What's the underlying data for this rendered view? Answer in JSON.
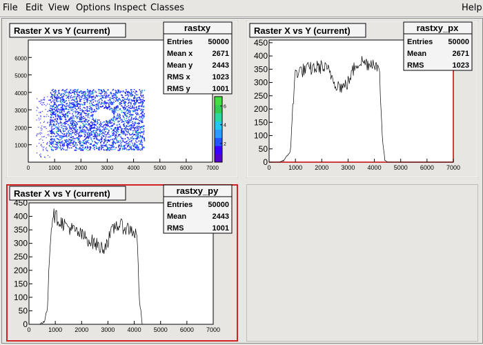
{
  "menu": {
    "file": "File",
    "edit": "Edit",
    "view": "View",
    "options": "Options",
    "inspect": "Inspect",
    "classes": "Classes",
    "help": "Help"
  },
  "pads": [
    {
      "title": "Raster X vs Y (current)",
      "stats_title": "rastxy",
      "stats": [
        {
          "label": "Entries",
          "value": "50000"
        },
        {
          "label": "Mean x",
          "value": "2671"
        },
        {
          "label": "Mean y",
          "value": "2443"
        },
        {
          "label": "RMS x",
          "value": "1023"
        },
        {
          "label": "RMS y",
          "value": "1001"
        }
      ]
    },
    {
      "title": "Raster X vs Y (current)",
      "stats_title": "rastxy_px",
      "stats": [
        {
          "label": "Entries",
          "value": "50000"
        },
        {
          "label": "Mean",
          "value": "2671"
        },
        {
          "label": "RMS",
          "value": "1023"
        }
      ]
    },
    {
      "title": "Raster X vs Y (current)",
      "stats_title": "rastxy_py",
      "stats": [
        {
          "label": "Entries",
          "value": "50000"
        },
        {
          "label": "Mean",
          "value": "2443"
        },
        {
          "label": "RMS",
          "value": "1001"
        }
      ]
    }
  ],
  "colors": {
    "selected_border": "#d02020",
    "frame_line": "#c00000",
    "hist_line": "#000000"
  },
  "chart_data": [
    {
      "type": "heatmap",
      "name": "rastxy",
      "xlim": [
        0,
        7000
      ],
      "ylim": [
        0,
        7000
      ],
      "x_ticks": [
        0,
        1000,
        2000,
        3000,
        4000,
        5000,
        6000,
        7000
      ],
      "y_ticks": [
        1000,
        2000,
        3000,
        4000,
        5000,
        6000
      ],
      "z_ticks": [
        2,
        4,
        6
      ],
      "region": {
        "x": [
          800,
          4400
        ],
        "y": [
          700,
          4200
        ]
      },
      "hole": {
        "cx": 2850,
        "cy": 2750,
        "r": 350
      }
    },
    {
      "type": "line",
      "name": "rastxy_px",
      "xlim": [
        0,
        7000
      ],
      "ylim": [
        0,
        460
      ],
      "x_ticks": [
        0,
        1000,
        2000,
        3000,
        4000,
        5000,
        6000,
        7000
      ],
      "y_ticks": [
        0,
        50,
        100,
        150,
        200,
        250,
        300,
        350,
        400,
        450
      ],
      "x": [
        0,
        400,
        600,
        800,
        900,
        1000,
        1500,
        2000,
        2300,
        2500,
        2800,
        3000,
        3300,
        3500,
        3800,
        4000,
        4200,
        4300,
        4400,
        4500,
        7000
      ],
      "y": [
        0,
        0,
        10,
        40,
        200,
        340,
        350,
        360,
        340,
        300,
        280,
        300,
        370,
        380,
        370,
        380,
        330,
        90,
        10,
        0,
        0
      ]
    },
    {
      "type": "line",
      "name": "rastxy_py",
      "xlim": [
        0,
        7000
      ],
      "ylim": [
        0,
        450
      ],
      "x_ticks": [
        0,
        1000,
        2000,
        3000,
        4000,
        5000,
        6000,
        7000
      ],
      "y_ticks": [
        0,
        50,
        100,
        150,
        200,
        250,
        300,
        350,
        400,
        450
      ],
      "x": [
        0,
        400,
        600,
        700,
        800,
        900,
        1200,
        1500,
        2000,
        2500,
        2800,
        3000,
        3300,
        3600,
        3900,
        4100,
        4200,
        4300,
        7000
      ],
      "y": [
        0,
        0,
        10,
        80,
        300,
        410,
        380,
        360,
        330,
        300,
        280,
        310,
        370,
        360,
        350,
        330,
        100,
        0,
        0
      ]
    }
  ]
}
